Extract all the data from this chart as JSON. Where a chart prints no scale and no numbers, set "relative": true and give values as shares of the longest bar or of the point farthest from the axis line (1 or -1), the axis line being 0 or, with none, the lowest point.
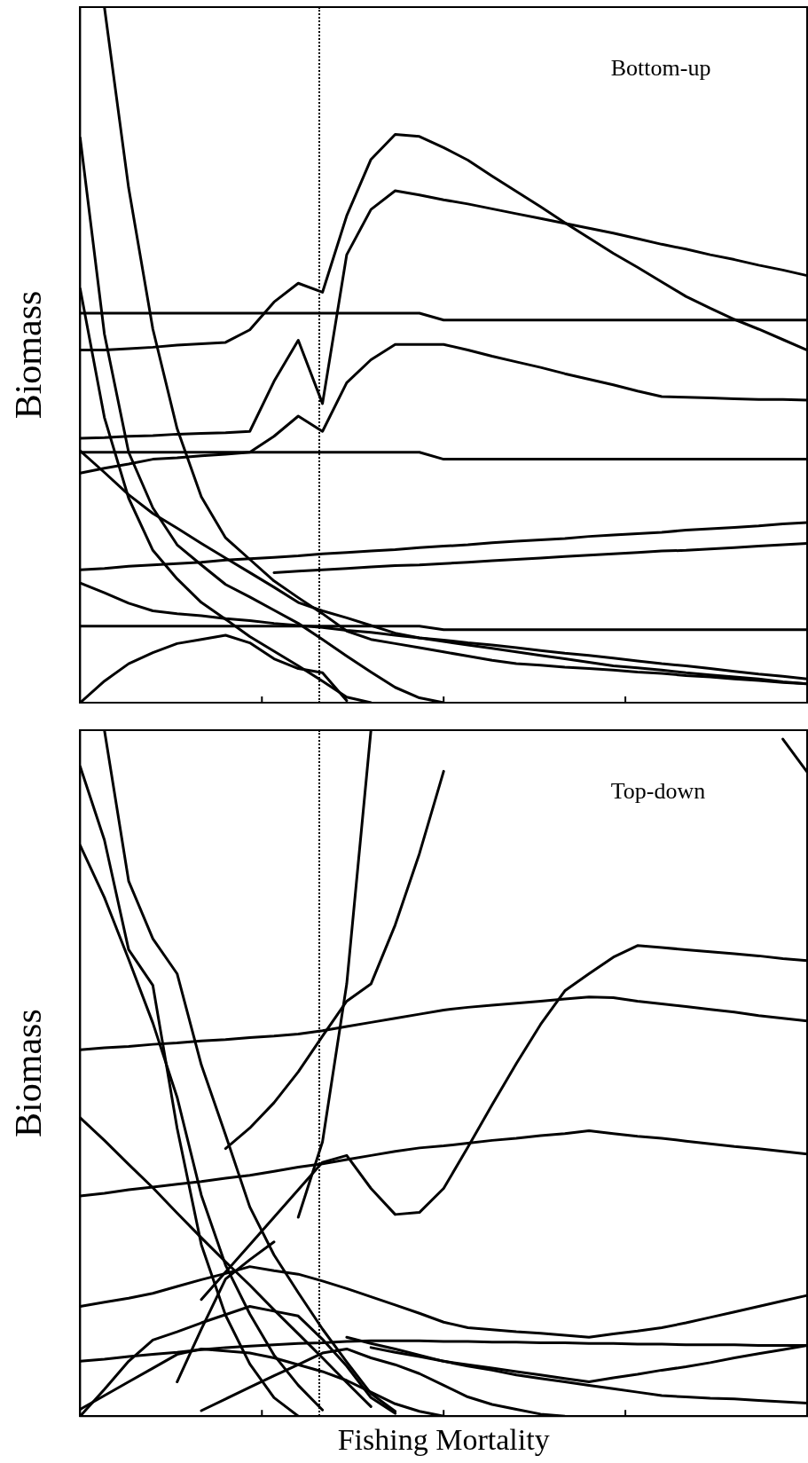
{
  "chart_data": [
    {
      "type": "line",
      "relative": true,
      "ylabel": "Biomass",
      "annotations": [
        "Bottom-up"
      ],
      "tick_labels": false,
      "categories": [
        null,
        null,
        null,
        null,
        null,
        null,
        null,
        null,
        null,
        null,
        null,
        null,
        null,
        null,
        null,
        null,
        null,
        null,
        null,
        null,
        null,
        null,
        null,
        null,
        null,
        null,
        null,
        null,
        null,
        null,
        null
      ],
      "series": [
        {
          "color": "#000000",
          "values": [
            0.56,
            0.56,
            0.56,
            0.56,
            0.56,
            0.56,
            0.56,
            0.56,
            0.56,
            0.56,
            0.56,
            0.56,
            0.56,
            0.56,
            0.56,
            0.55,
            0.55,
            0.55,
            0.55,
            0.55,
            0.55,
            0.55,
            0.55,
            0.55,
            0.55,
            0.55,
            0.55,
            0.55,
            0.55,
            0.55,
            0.55
          ]
        },
        {
          "color": "#000000",
          "values": [
            0.36,
            0.36,
            0.36,
            0.36,
            0.36,
            0.36,
            0.36,
            0.36,
            0.36,
            0.36,
            0.36,
            0.36,
            0.36,
            0.36,
            0.36,
            0.35,
            0.35,
            0.35,
            0.35,
            0.35,
            0.35,
            0.35,
            0.35,
            0.35,
            0.35,
            0.35,
            0.35,
            0.35,
            0.35,
            0.35,
            0.35
          ]
        },
        {
          "color": "#000000",
          "values": [
            0.11,
            0.11,
            0.11,
            0.11,
            0.11,
            0.11,
            0.11,
            0.11,
            0.11,
            0.11,
            0.11,
            0.11,
            0.11,
            0.11,
            0.11,
            0.105,
            0.105,
            0.105,
            0.105,
            0.105,
            0.105,
            0.105,
            0.105,
            0.105,
            0.105,
            0.105,
            0.105,
            0.105,
            0.105,
            0.105,
            0.105
          ]
        },
        {
          "color": "#000000",
          "values": [
            0.507,
            0.507,
            0.509,
            0.511,
            0.514,
            0.516,
            0.518,
            0.536,
            0.576,
            0.603,
            0.59,
            0.7,
            0.781,
            0.817,
            0.814,
            0.798,
            0.78,
            0.757,
            0.735,
            0.713,
            0.69,
            0.668,
            0.646,
            0.626,
            0.605,
            0.584,
            0.567,
            0.551,
            0.537,
            0.522,
            0.507
          ]
        },
        {
          "color": "#000000",
          "values": [
            0.38,
            0.381,
            0.383,
            0.384,
            0.386,
            0.387,
            0.388,
            0.39,
            0.462,
            0.521,
            0.43,
            0.644,
            0.709,
            0.736,
            0.73,
            0.723,
            0.717,
            0.71,
            0.703,
            0.696,
            0.689,
            0.682,
            0.675,
            0.667,
            0.659,
            0.652,
            0.644,
            0.637,
            0.629,
            0.622,
            0.614
          ]
        },
        {
          "color": "#000000",
          "values": [
            0.33,
            0.337,
            0.343,
            0.35,
            0.352,
            0.355,
            0.357,
            0.36,
            0.383,
            0.412,
            0.39,
            0.46,
            0.493,
            0.515,
            0.515,
            0.515,
            0.507,
            0.498,
            0.49,
            0.482,
            0.473,
            0.465,
            0.457,
            0.448,
            0.44,
            0.439,
            0.438,
            0.437,
            0.436,
            0.436,
            0.435
          ]
        },
        {
          "color": "#000000",
          "values": [
            0.191,
            0.193,
            0.196,
            0.198,
            0.2,
            0.202,
            0.205,
            0.207,
            0.209,
            0.211,
            0.214,
            0.216,
            0.218,
            0.22,
            0.223,
            0.225,
            0.227,
            0.23,
            0.232,
            0.234,
            0.236,
            0.239,
            0.241,
            0.243,
            0.245,
            0.248,
            0.25,
            0.252,
            0.254,
            0.257,
            0.259
          ]
        },
        {
          "color": "#000000",
          "values": [
            null,
            null,
            null,
            null,
            null,
            null,
            null,
            null,
            0.187,
            0.189,
            0.191,
            0.193,
            0.195,
            0.197,
            0.198,
            0.2,
            0.202,
            0.204,
            0.206,
            0.208,
            0.21,
            0.212,
            0.214,
            0.216,
            0.218,
            0.219,
            0.221,
            0.223,
            0.225,
            0.227,
            0.229
          ]
        },
        {
          "color": "#000000",
          "values": [
            null,
            1,
            0.74,
            0.537,
            0.394,
            0.296,
            0.237,
            0.206,
            0.175,
            0.151,
            0.128,
            0.103,
            0.091,
            0.085,
            0.079,
            0.073,
            0.067,
            0.061,
            0.056,
            0.054,
            0.051,
            0.049,
            0.047,
            0.044,
            0.042,
            0.039,
            0.037,
            0.034,
            0.032,
            0.029,
            0.027
          ]
        },
        {
          "color": "#000000",
          "values": [
            0.812,
            0.53,
            0.36,
            0.28,
            0.227,
            0.198,
            0.17,
            0.152,
            0.133,
            0.114,
            0.091,
            0.067,
            0.044,
            0.022,
            0.007,
            0,
            null,
            null,
            null,
            null,
            null,
            null,
            null,
            null,
            null,
            null,
            null,
            null,
            null,
            null,
            null
          ]
        },
        {
          "color": "#000000",
          "values": [
            0.595,
            0.41,
            0.294,
            0.219,
            0.178,
            0.144,
            0.12,
            0.095,
            0.074,
            0.053,
            0.031,
            0.008,
            0,
            null,
            null,
            null,
            null,
            null,
            null,
            null,
            null,
            null,
            null,
            null,
            null,
            null,
            null,
            null,
            null,
            null,
            null
          ]
        },
        {
          "color": "#000000",
          "values": [
            0.362,
            0.331,
            0.299,
            0.272,
            0.251,
            0.229,
            0.208,
            0.187,
            0.166,
            0.144,
            0.132,
            0.122,
            0.111,
            0.1,
            0.093,
            0.088,
            0.083,
            0.078,
            0.073,
            0.068,
            0.063,
            0.058,
            0.053,
            0.05,
            0.047,
            0.043,
            0.04,
            0.037,
            0.034,
            0.03,
            0.027
          ]
        },
        {
          "color": "#000000",
          "values": [
            0,
            0.031,
            0.056,
            0.072,
            0.085,
            0.091,
            0.097,
            0.086,
            0.063,
            0.049,
            0.043,
            0.003,
            null,
            null,
            null,
            null,
            null,
            null,
            null,
            null,
            null,
            null,
            null,
            null,
            null,
            null,
            null,
            null,
            null,
            null,
            null
          ]
        },
        {
          "color": "#000000",
          "values": [
            0.172,
            0.158,
            0.143,
            0.132,
            0.128,
            0.125,
            0.121,
            0.118,
            0.114,
            0.111,
            0.108,
            0.104,
            0.101,
            0.097,
            0.093,
            0.09,
            0.086,
            0.083,
            0.079,
            0.075,
            0.071,
            0.068,
            0.064,
            0.06,
            0.056,
            0.053,
            0.049,
            0.045,
            0.041,
            0.038,
            0.034
          ]
        }
      ]
    },
    {
      "type": "line",
      "relative": true,
      "ylabel": "Biomass",
      "xlabel": "Fishing Mortality",
      "annotations": [
        "Top-down"
      ],
      "tick_labels": false,
      "categories": [
        null,
        null,
        null,
        null,
        null,
        null,
        null,
        null,
        null,
        null,
        null,
        null,
        null,
        null,
        null,
        null,
        null,
        null,
        null,
        null,
        null,
        null,
        null,
        null,
        null,
        null,
        null,
        null,
        null,
        null,
        null
      ],
      "series": [
        {
          "color": "#000000",
          "values": [
            0.534,
            0.537,
            0.539,
            0.542,
            0.544,
            0.547,
            0.549,
            0.552,
            0.554,
            0.557,
            0.562,
            0.568,
            0.574,
            0.58,
            0.586,
            0.592,
            0.596,
            0.599,
            0.602,
            0.605,
            0.608,
            0.611,
            0.61,
            0.605,
            0.601,
            0.597,
            0.593,
            0.589,
            0.584,
            0.58,
            0.576
          ]
        },
        {
          "color": "#000000",
          "values": [
            0.321,
            0.325,
            0.33,
            0.334,
            0.338,
            0.342,
            0.347,
            0.351,
            0.357,
            0.363,
            0.368,
            0.374,
            0.38,
            0.386,
            0.391,
            0.394,
            0.398,
            0.402,
            0.405,
            0.409,
            0.412,
            0.416,
            0.412,
            0.408,
            0.405,
            0.401,
            0.397,
            0.393,
            0.39,
            0.386,
            0.382
          ]
        },
        {
          "color": "#000000",
          "values": [
            null,
            null,
            null,
            null,
            null,
            0.17,
            0.21,
            0.25,
            0.29,
            0.33,
            0.37,
            0.38,
            0.332,
            0.294,
            0.297,
            0.332,
            0.392,
            0.454,
            0.514,
            0.571,
            0.62,
            0.645,
            0.669,
            0.686,
            0.683,
            0.68,
            0.677,
            0.674,
            0.671,
            0.667,
            0.664
          ]
        },
        {
          "color": "#000000",
          "values": [
            null,
            null,
            null,
            null,
            null,
            null,
            0.39,
            0.42,
            0.457,
            0.502,
            0.554,
            0.605,
            0.63,
            0.716,
            0.82,
            0.94,
            null,
            null,
            null,
            null,
            null,
            null,
            null,
            null,
            null,
            null,
            null,
            null,
            null,
            null,
            null
          ]
        },
        {
          "color": "#000000",
          "values": [
            null,
            null,
            null,
            null,
            null,
            null,
            null,
            null,
            null,
            0.29,
            0.4,
            0.63,
            1,
            null,
            null,
            null,
            null,
            null,
            null,
            null,
            null,
            null,
            null,
            null,
            null,
            null,
            null,
            null,
            null,
            null,
            null
          ]
        },
        {
          "color": "#000000",
          "values": [
            null,
            null,
            null,
            null,
            null,
            null,
            null,
            null,
            null,
            null,
            null,
            null,
            null,
            null,
            null,
            null,
            null,
            null,
            null,
            null,
            null,
            null,
            null,
            null,
            null,
            null,
            null,
            null,
            null,
            0.987,
            0.939
          ]
        },
        {
          "color": "#000000",
          "values": [
            null,
            1,
            0.78,
            0.696,
            0.645,
            0.512,
            0.41,
            0.305,
            0.235,
            0.18,
            0.127,
            0.079,
            0.033,
            0.007,
            null,
            null,
            null,
            null,
            null,
            null,
            null,
            null,
            null,
            null,
            null,
            null,
            null,
            null,
            null,
            null,
            null
          ]
        },
        {
          "color": "#000000",
          "values": [
            0.947,
            0.84,
            0.68,
            0.628,
            0.42,
            0.25,
            0.147,
            0.076,
            0.027,
            0,
            null,
            null,
            null,
            null,
            null,
            null,
            null,
            null,
            null,
            null,
            null,
            null,
            null,
            null,
            null,
            null,
            null,
            null,
            null,
            null,
            null
          ]
        },
        {
          "color": "#000000",
          "values": [
            0.832,
            0.756,
            0.666,
            0.573,
            0.465,
            0.322,
            0.22,
            0.149,
            0.089,
            0.045,
            0.009,
            null,
            null,
            null,
            null,
            null,
            null,
            null,
            null,
            null,
            null,
            null,
            null,
            null,
            null,
            null,
            null,
            null,
            null,
            null,
            null
          ]
        },
        {
          "color": "#000000",
          "values": [
            0.435,
            0.402,
            0.367,
            0.333,
            0.296,
            0.26,
            0.225,
            0.191,
            0.155,
            0.12,
            0.085,
            0.049,
            0.014,
            null,
            null,
            null,
            null,
            null,
            null,
            null,
            null,
            null,
            null,
            null,
            null,
            null,
            null,
            null,
            null,
            null,
            null
          ]
        },
        {
          "color": "#000000",
          "values": [
            0.16,
            0.166,
            0.172,
            0.179,
            0.189,
            0.199,
            0.208,
            0.218,
            0.212,
            0.207,
            0.197,
            0.186,
            0.174,
            0.162,
            0.15,
            0.137,
            0.129,
            0.126,
            0.123,
            0.121,
            0.118,
            0.115,
            0.12,
            0.124,
            0.129,
            0.136,
            0.144,
            0.152,
            0.16,
            0.168,
            0.176
          ]
        },
        {
          "color": "#000000",
          "values": [
            0.08,
            0.083,
            0.087,
            0.09,
            0.093,
            0.097,
            0.1,
            0.102,
            0.104,
            0.106,
            0.107,
            0.109,
            0.11,
            0.11,
            0.11,
            0.109,
            0.109,
            0.108,
            0.108,
            0.107,
            0.107,
            0.106,
            0.106,
            0.105,
            0.105,
            0.104,
            0.104,
            0.104,
            0.103,
            0.103,
            0.103
          ]
        },
        {
          "color": "#000000",
          "values": [
            null,
            null,
            null,
            null,
            null,
            null,
            null,
            null,
            null,
            null,
            null,
            0.115,
            0.106,
            0.098,
            0.089,
            0.08,
            0.075,
            0.07,
            0.065,
            0.06,
            0.055,
            0.05,
            0.056,
            0.061,
            0.067,
            0.072,
            0.078,
            0.085,
            0.091,
            0.097,
            0.103
          ]
        },
        {
          "color": "#000000",
          "values": [
            null,
            null,
            null,
            null,
            null,
            null,
            null,
            null,
            null,
            null,
            null,
            null,
            0.1,
            0.093,
            0.087,
            0.08,
            0.073,
            0.067,
            0.06,
            0.055,
            0.05,
            0.045,
            0.04,
            0.035,
            0.03,
            0.028,
            0.026,
            0.025,
            0.023,
            0.021,
            0.019
          ]
        },
        {
          "color": "#000000",
          "values": [
            0,
            0.039,
            0.08,
            0.111,
            0.123,
            0.136,
            0.148,
            0.16,
            0.153,
            0.146,
            0.112,
            0.073,
            0.027,
            0.004,
            null,
            null,
            null,
            null,
            null,
            null,
            null,
            null,
            null,
            null,
            null,
            null,
            null,
            null,
            null,
            null,
            null
          ]
        },
        {
          "color": "#000000",
          "values": [
            0.01,
            0.03,
            0.05,
            0.07,
            0.09,
            0.098,
            0.095,
            0.092,
            0.085,
            0.075,
            0.065,
            0.052,
            0.035,
            0.018,
            0.007,
            0,
            null,
            null,
            null,
            null,
            null,
            null,
            null,
            null,
            null,
            null,
            null,
            null,
            null,
            null,
            null
          ]
        },
        {
          "color": "#000000",
          "values": [
            null,
            null,
            null,
            null,
            null,
            0.008,
            0.025,
            0.042,
            0.059,
            0.075,
            0.092,
            0.098,
            0.085,
            0.075,
            0.062,
            0.045,
            0.028,
            0.017,
            0.01,
            0.003,
            0,
            null,
            null,
            null,
            null,
            null,
            null,
            null,
            null,
            null,
            null
          ]
        },
        {
          "color": "#000000",
          "values": [
            null,
            null,
            null,
            null,
            0.05,
            0.127,
            0.2,
            0.228,
            0.254,
            null,
            null,
            null,
            null,
            null,
            null,
            null,
            null,
            null,
            null,
            null,
            null,
            null,
            null,
            null,
            null,
            null,
            null,
            null,
            null,
            null,
            null
          ]
        }
      ]
    }
  ]
}
